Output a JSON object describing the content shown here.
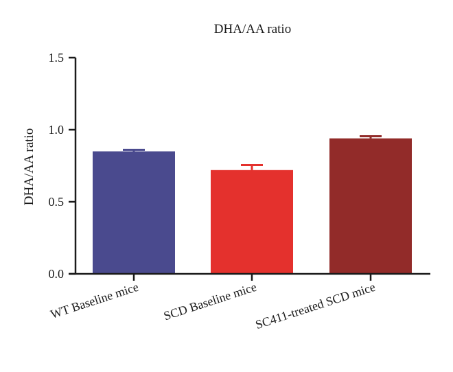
{
  "chart_data": {
    "type": "bar",
    "title": "DHA/AA ratio",
    "xlabel": "",
    "ylabel": "DHA/AA ratio",
    "categories": [
      "WT Baseline mice",
      "SCD Baseline mice",
      "SC411-treated SCD mice"
    ],
    "values": [
      0.85,
      0.72,
      0.94
    ],
    "error_bars": [
      0.01,
      0.035,
      0.015
    ],
    "colors": [
      "#4a4a8e",
      "#e4312d",
      "#922b29"
    ],
    "ylim": [
      0,
      1.5
    ],
    "yticks": [
      0.0,
      0.5,
      1.0,
      1.5
    ],
    "ytick_labels": [
      "0.0",
      "0.5",
      "1.0",
      "1.5"
    ],
    "grid": false,
    "legend": "none"
  }
}
